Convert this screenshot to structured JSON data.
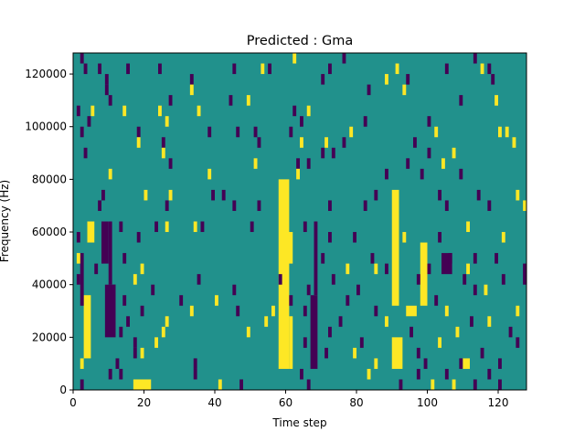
{
  "chart_data": {
    "type": "heatmap",
    "title": "Predicted : Gma",
    "xlabel": "Time step",
    "ylabel": "Frequency (Hz)",
    "xlim": [
      0,
      128
    ],
    "ylim": [
      0,
      128000
    ],
    "n_rows": 32,
    "xticks": [
      0,
      20,
      40,
      60,
      80,
      100,
      120
    ],
    "yticks": [
      0,
      20000,
      40000,
      60000,
      80000,
      100000,
      120000
    ],
    "colors": {
      "0": "#440154",
      "1": "#21918c",
      "2": "#fde725"
    },
    "background_value": 1,
    "patches_note": "rects: [t_start, t_end, row_start, row_end, value]",
    "rects": [
      [
        58,
        61,
        2,
        19,
        2
      ],
      [
        61,
        62,
        2,
        6,
        2
      ],
      [
        60,
        62,
        12,
        14,
        2
      ],
      [
        67,
        69,
        2,
        8,
        0
      ],
      [
        68,
        69,
        9,
        15,
        0
      ],
      [
        90,
        92,
        8,
        18,
        2
      ],
      [
        90,
        93,
        2,
        4,
        2
      ],
      [
        17,
        22,
        0,
        0,
        2
      ],
      [
        9,
        12,
        5,
        9,
        0
      ],
      [
        10,
        11,
        10,
        15,
        0
      ],
      [
        3,
        5,
        3,
        8,
        2
      ],
      [
        2,
        3,
        8,
        12,
        0
      ],
      [
        94,
        97,
        7,
        7,
        2
      ],
      [
        98,
        100,
        8,
        13,
        2
      ],
      [
        104,
        107,
        11,
        12,
        0
      ],
      [
        110,
        112,
        2,
        2,
        2
      ],
      [
        127,
        128,
        10,
        11,
        0
      ],
      [
        8,
        10,
        12,
        15,
        0
      ],
      [
        4,
        6,
        14,
        15,
        2
      ]
    ],
    "cells": [
      [
        2,
        31,
        0
      ],
      [
        62,
        31,
        2
      ],
      [
        76,
        31,
        0
      ],
      [
        113,
        31,
        0
      ],
      [
        3,
        30,
        0
      ],
      [
        7,
        30,
        0
      ],
      [
        15,
        30,
        0
      ],
      [
        24,
        30,
        0
      ],
      [
        45,
        30,
        0
      ],
      [
        53,
        30,
        2
      ],
      [
        55,
        30,
        0
      ],
      [
        72,
        30,
        0
      ],
      [
        91,
        30,
        2
      ],
      [
        105,
        30,
        0
      ],
      [
        115,
        30,
        2
      ],
      [
        117,
        30,
        0
      ],
      [
        9,
        29,
        0
      ],
      [
        33,
        29,
        0
      ],
      [
        70,
        29,
        0
      ],
      [
        88,
        29,
        2
      ],
      [
        94,
        29,
        0
      ],
      [
        118,
        29,
        0
      ],
      [
        9,
        28,
        0
      ],
      [
        33,
        28,
        2
      ],
      [
        83,
        28,
        0
      ],
      [
        93,
        28,
        2
      ],
      [
        10,
        27,
        0
      ],
      [
        27,
        27,
        0
      ],
      [
        44,
        27,
        0
      ],
      [
        49,
        27,
        2
      ],
      [
        109,
        27,
        0
      ],
      [
        119,
        27,
        2
      ],
      [
        1,
        26,
        0
      ],
      [
        5,
        26,
        2
      ],
      [
        14,
        26,
        2
      ],
      [
        24,
        26,
        2
      ],
      [
        35,
        26,
        2
      ],
      [
        62,
        26,
        0
      ],
      [
        66,
        26,
        2
      ],
      [
        4,
        25,
        0
      ],
      [
        26,
        25,
        2
      ],
      [
        64,
        25,
        0
      ],
      [
        82,
        25,
        0
      ],
      [
        100,
        25,
        0
      ],
      [
        2,
        24,
        0
      ],
      [
        18,
        24,
        0
      ],
      [
        38,
        24,
        0
      ],
      [
        46,
        24,
        0
      ],
      [
        51,
        24,
        0
      ],
      [
        61,
        24,
        0
      ],
      [
        78,
        24,
        2
      ],
      [
        102,
        24,
        2
      ],
      [
        120,
        24,
        2
      ],
      [
        122,
        24,
        2
      ],
      [
        18,
        23,
        2
      ],
      [
        25,
        23,
        0
      ],
      [
        52,
        23,
        0
      ],
      [
        64,
        23,
        2
      ],
      [
        71,
        23,
        2
      ],
      [
        76,
        23,
        0
      ],
      [
        96,
        23,
        0
      ],
      [
        124,
        23,
        2
      ],
      [
        3,
        22,
        0
      ],
      [
        25,
        22,
        2
      ],
      [
        70,
        22,
        0
      ],
      [
        73,
        22,
        0
      ],
      [
        100,
        22,
        0
      ],
      [
        107,
        22,
        2
      ],
      [
        27,
        21,
        0
      ],
      [
        51,
        21,
        2
      ],
      [
        63,
        21,
        0
      ],
      [
        66,
        21,
        0
      ],
      [
        94,
        21,
        0
      ],
      [
        104,
        21,
        2
      ],
      [
        10,
        20,
        2
      ],
      [
        38,
        20,
        2
      ],
      [
        63,
        20,
        2
      ],
      [
        88,
        20,
        0
      ],
      [
        98,
        20,
        0
      ],
      [
        109,
        20,
        0
      ],
      [
        8,
        18,
        0
      ],
      [
        20,
        18,
        2
      ],
      [
        27,
        18,
        2
      ],
      [
        39,
        18,
        0
      ],
      [
        42,
        18,
        0
      ],
      [
        85,
        18,
        0
      ],
      [
        103,
        18,
        0
      ],
      [
        114,
        18,
        0
      ],
      [
        125,
        18,
        2
      ],
      [
        7,
        17,
        0
      ],
      [
        26,
        17,
        0
      ],
      [
        45,
        17,
        0
      ],
      [
        52,
        17,
        0
      ],
      [
        72,
        17,
        0
      ],
      [
        82,
        17,
        0
      ],
      [
        105,
        17,
        0
      ],
      [
        117,
        17,
        0
      ],
      [
        127,
        17,
        2
      ],
      [
        4,
        15,
        2
      ],
      [
        13,
        15,
        0
      ],
      [
        23,
        15,
        0
      ],
      [
        26,
        15,
        2
      ],
      [
        34,
        15,
        2
      ],
      [
        36,
        15,
        0
      ],
      [
        50,
        15,
        0
      ],
      [
        65,
        15,
        0
      ],
      [
        111,
        15,
        2
      ],
      [
        1,
        14,
        0
      ],
      [
        18,
        14,
        0
      ],
      [
        72,
        14,
        0
      ],
      [
        79,
        14,
        0
      ],
      [
        93,
        14,
        2
      ],
      [
        103,
        14,
        0
      ],
      [
        121,
        14,
        2
      ],
      [
        1,
        12,
        2
      ],
      [
        14,
        12,
        0
      ],
      [
        70,
        12,
        0
      ],
      [
        84,
        12,
        0
      ],
      [
        106,
        12,
        0
      ],
      [
        113,
        12,
        0
      ],
      [
        119,
        12,
        0
      ],
      [
        6,
        11,
        0
      ],
      [
        19,
        11,
        2
      ],
      [
        77,
        11,
        2
      ],
      [
        85,
        11,
        2
      ],
      [
        88,
        11,
        0
      ],
      [
        100,
        11,
        0
      ],
      [
        111,
        11,
        2
      ],
      [
        1,
        10,
        0
      ],
      [
        17,
        10,
        2
      ],
      [
        35,
        10,
        0
      ],
      [
        58,
        10,
        0
      ],
      [
        73,
        10,
        0
      ],
      [
        97,
        10,
        0
      ],
      [
        110,
        10,
        0
      ],
      [
        121,
        10,
        0
      ],
      [
        11,
        9,
        0
      ],
      [
        22,
        9,
        0
      ],
      [
        45,
        9,
        0
      ],
      [
        66,
        9,
        0
      ],
      [
        80,
        9,
        0
      ],
      [
        113,
        9,
        0
      ],
      [
        116,
        9,
        2
      ],
      [
        14,
        8,
        0
      ],
      [
        30,
        8,
        0
      ],
      [
        40,
        8,
        2
      ],
      [
        61,
        8,
        0
      ],
      [
        77,
        8,
        0
      ],
      [
        102,
        8,
        0
      ],
      [
        19,
        7,
        0
      ],
      [
        33,
        7,
        2
      ],
      [
        46,
        7,
        0
      ],
      [
        56,
        7,
        2
      ],
      [
        65,
        7,
        0
      ],
      [
        85,
        7,
        0
      ],
      [
        105,
        7,
        2
      ],
      [
        125,
        7,
        2
      ],
      [
        15,
        6,
        0
      ],
      [
        26,
        6,
        2
      ],
      [
        54,
        6,
        2
      ],
      [
        75,
        6,
        0
      ],
      [
        88,
        6,
        2
      ],
      [
        112,
        6,
        0
      ],
      [
        117,
        6,
        2
      ],
      [
        13,
        5,
        0
      ],
      [
        25,
        5,
        2
      ],
      [
        49,
        5,
        2
      ],
      [
        72,
        5,
        0
      ],
      [
        95,
        5,
        0
      ],
      [
        108,
        5,
        2
      ],
      [
        123,
        5,
        0
      ],
      [
        17,
        4,
        0
      ],
      [
        23,
        4,
        2
      ],
      [
        65,
        4,
        0
      ],
      [
        81,
        4,
        0
      ],
      [
        103,
        4,
        2
      ],
      [
        125,
        4,
        0
      ],
      [
        17,
        3,
        0
      ],
      [
        19,
        3,
        2
      ],
      [
        71,
        3,
        0
      ],
      [
        79,
        3,
        2
      ],
      [
        97,
        3,
        0
      ],
      [
        115,
        3,
        0
      ],
      [
        2,
        2,
        2
      ],
      [
        12,
        2,
        0
      ],
      [
        34,
        2,
        0
      ],
      [
        85,
        2,
        2
      ],
      [
        99,
        2,
        0
      ],
      [
        109,
        2,
        0
      ],
      [
        120,
        2,
        0
      ],
      [
        10,
        1,
        0
      ],
      [
        13,
        1,
        0
      ],
      [
        34,
        1,
        0
      ],
      [
        64,
        1,
        0
      ],
      [
        83,
        1,
        2
      ],
      [
        97,
        1,
        0
      ],
      [
        105,
        1,
        0
      ],
      [
        117,
        1,
        0
      ],
      [
        2,
        0,
        0
      ],
      [
        41,
        0,
        2
      ],
      [
        47,
        0,
        0
      ],
      [
        66,
        0,
        0
      ],
      [
        92,
        0,
        0
      ],
      [
        101,
        0,
        2
      ],
      [
        107,
        0,
        2
      ],
      [
        113,
        0,
        0
      ],
      [
        120,
        0,
        0
      ]
    ]
  }
}
